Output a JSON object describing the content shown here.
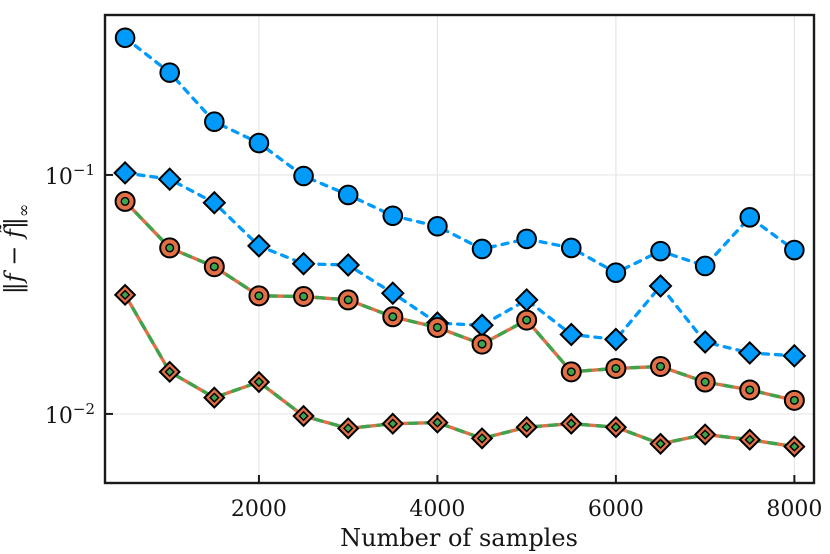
{
  "chart_data": {
    "type": "line",
    "title": "",
    "xlabel": "Number of samples",
    "ylabel": "‖f − f̃‖∞",
    "ylabel_parts": {
      "open": "‖",
      "body": "f − f̃",
      "close": "‖",
      "sub": "∞"
    },
    "yscale": "log",
    "grid": true,
    "legend_position": "none",
    "xlim": [
      275,
      8220
    ],
    "ylim": [
      0.00514,
      0.467
    ],
    "x_ticks": [
      2000,
      4000,
      6000,
      8000
    ],
    "x_ticklabels": [
      "2000",
      "4000",
      "6000",
      "8000"
    ],
    "y_ticks": [
      0.1,
      0.01
    ],
    "y_ticklabels": [
      {
        "base": "10",
        "exp": "−1"
      },
      {
        "base": "10",
        "exp": "−2"
      }
    ],
    "x": [
      500,
      1000,
      1500,
      2000,
      2500,
      3000,
      3500,
      4000,
      4500,
      5000,
      5500,
      6000,
      6500,
      7000,
      7500,
      8000
    ],
    "series": [
      {
        "name": "blue-dashed-circles",
        "marker": "circle",
        "line": "dashed",
        "color_key": "blue",
        "values": [
          0.375,
          0.268,
          0.167,
          0.136,
          0.099,
          0.0825,
          0.0675,
          0.061,
          0.049,
          0.054,
          0.0495,
          0.039,
          0.048,
          0.0416,
          0.0665,
          0.0485
        ]
      },
      {
        "name": "blue-dashed-diamonds",
        "marker": "diamond",
        "line": "dashed",
        "color_key": "blue",
        "values": [
          0.102,
          0.096,
          0.0765,
          0.0505,
          0.0425,
          0.042,
          0.032,
          0.024,
          0.0235,
          0.03,
          0.0215,
          0.0205,
          0.0343,
          0.02,
          0.018,
          0.0175
        ]
      },
      {
        "name": "orange-green-circles",
        "marker": "circle-dot",
        "line": "dash-over-solid",
        "color_key": "orange",
        "color2_key": "green",
        "values": [
          0.0775,
          0.0495,
          0.0413,
          0.0312,
          0.031,
          0.03,
          0.0255,
          0.023,
          0.0196,
          0.0247,
          0.015,
          0.0155,
          0.0158,
          0.0136,
          0.0126,
          0.0114
        ]
      },
      {
        "name": "orange-green-diamonds",
        "marker": "diamond-dot",
        "line": "dash-over-solid",
        "color_key": "orange",
        "color2_key": "green",
        "values": [
          0.0315,
          0.015,
          0.0117,
          0.0136,
          0.0098,
          0.0087,
          0.0091,
          0.0092,
          0.0079,
          0.0088,
          0.0091,
          0.0088,
          0.0075,
          0.0082,
          0.0078,
          0.0073
        ]
      }
    ],
    "colors": {
      "blue": "#009AFA",
      "orange": "#E26F46",
      "green": "#3DA44D",
      "marker_edge": "#000000",
      "grid": "#E6E6E6",
      "frame": "#1A1A1A",
      "background": "#FFFFFF"
    }
  }
}
